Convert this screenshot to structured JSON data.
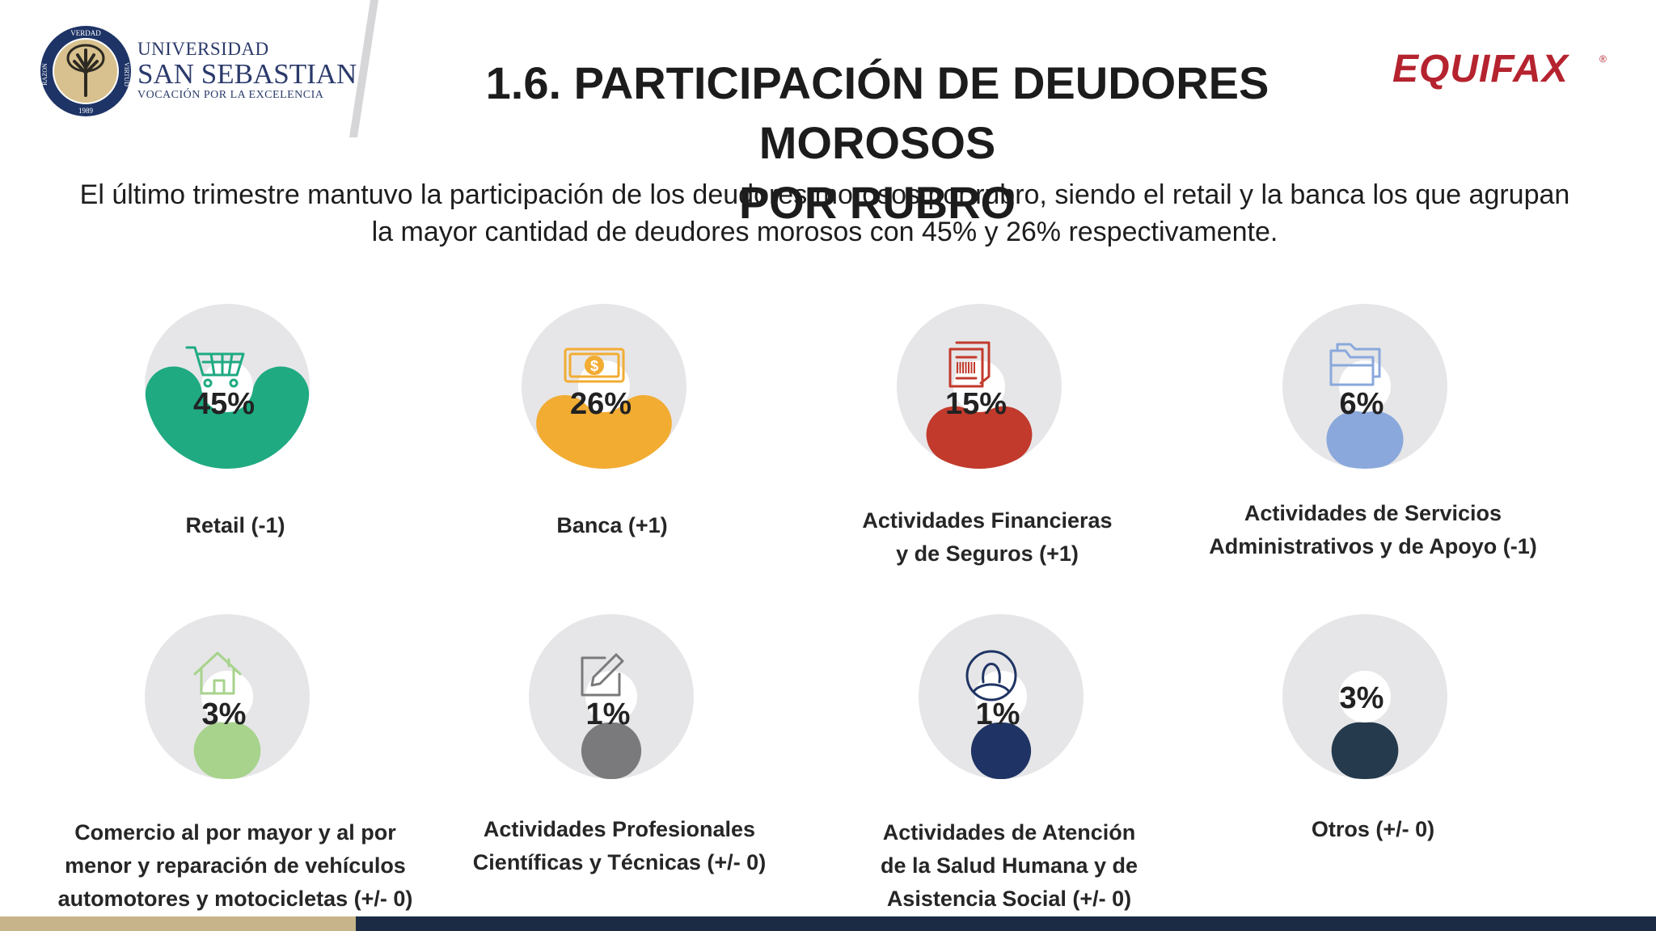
{
  "header": {
    "university": {
      "line1": "UNIVERSIDAD",
      "line2": "SAN SEBASTIAN",
      "line3": "VOCACIÓN POR LA EXCELENCIA",
      "seal_top": "VERDAD",
      "seal_left": "RAZON",
      "seal_right": "VIRTUD",
      "seal_year": "1989"
    },
    "title_line1": "1.6. PARTICIPACIÓN DE DEUDORES MOROSOS",
    "title_line2": "POR RUBRO",
    "brand_logo": "EQUIFAX",
    "brand_reg": "®"
  },
  "subtitle_line1": "El último trimestre mantuvo la participación de los deudores morosos por rubro, siendo el retail y la banca los que agrupan",
  "subtitle_line2": "la mayor cantidad de deudores morosos con 45% y 26% respectivamente.",
  "colors": {
    "track": "#e6e6e8",
    "title": "#1c1c1c",
    "equifax": "#b5232f",
    "footer_gold": "#c8b48a",
    "footer_navy": "#1a2b43"
  },
  "chart_data": {
    "type": "donut",
    "unit": "%",
    "items": [
      {
        "category_lines": [
          "Retail (-1)"
        ],
        "value": 45,
        "value_label": "45%",
        "color": "#1faa82",
        "icon": "shopping-cart-icon"
      },
      {
        "category_lines": [
          "Banca (+1)"
        ],
        "value": 26,
        "value_label": "26%",
        "color": "#f2ac32",
        "icon": "banknote-icon"
      },
      {
        "category_lines": [
          "Actividades Financieras",
          "y de Seguros (+1)"
        ],
        "value": 15,
        "value_label": "15%",
        "color": "#c23a2c",
        "icon": "receipt-icon"
      },
      {
        "category_lines": [
          "Actividades de Servicios",
          "Administrativos y de Apoyo (-1)"
        ],
        "value": 6,
        "value_label": "6%",
        "color": "#8aa8dc",
        "icon": "folder-icon"
      },
      {
        "category_lines": [
          "Comercio al por mayor y al por",
          "menor y reparación de vehículos",
          "automotores y motocicletas (+/- 0)"
        ],
        "value": 3,
        "value_label": "3%",
        "color": "#a7d38c",
        "icon": "house-icon"
      },
      {
        "category_lines": [
          "Actividades Profesionales",
          "Científicas y Técnicas (+/- 0)"
        ],
        "value": 1,
        "value_label": "1%",
        "color": "#7a7a7c",
        "icon": "edit-icon"
      },
      {
        "category_lines": [
          "Actividades de Atención",
          "de la Salud Humana y de",
          "Asistencia Social (+/- 0)"
        ],
        "value": 1,
        "value_label": "1%",
        "color": "#1f3464",
        "icon": "person-icon"
      },
      {
        "category_lines": [
          "Otros (+/- 0)"
        ],
        "value": 3,
        "value_label": "3%",
        "color": "#253a4c",
        "icon": ""
      }
    ]
  }
}
